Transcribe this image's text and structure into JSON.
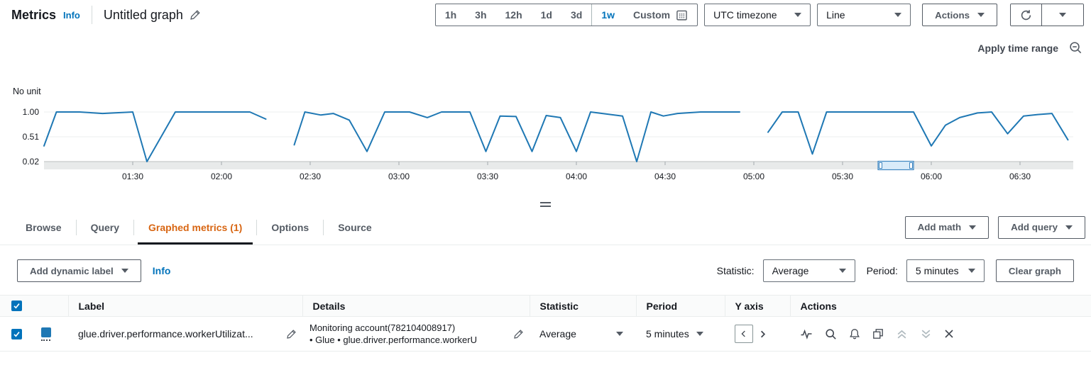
{
  "header": {
    "app_title": "Metrics",
    "info_label": "Info",
    "graph_title": "Untitled graph",
    "time_ranges": [
      "1h",
      "3h",
      "12h",
      "1d",
      "3d",
      "1w",
      "Custom"
    ],
    "selected_time_range": "1w",
    "timezone_value": "UTC timezone",
    "chart_type_value": "Line",
    "actions_label": "Actions"
  },
  "chart_panel": {
    "apply_time_range_label": "Apply time range"
  },
  "chart_data": {
    "type": "line",
    "unit_label": "No unit",
    "line_color": "#1f78b4",
    "xlim_hours": [
      1.0,
      6.8
    ],
    "y_ticks": [
      {
        "v": 1.0,
        "label": "1.00"
      },
      {
        "v": 0.51,
        "label": "0.51"
      },
      {
        "v": 0.02,
        "label": "0.02"
      }
    ],
    "x_ticks": [
      {
        "t": 1.5,
        "label": "01:30"
      },
      {
        "t": 2.0,
        "label": "02:00"
      },
      {
        "t": 2.5,
        "label": "02:30"
      },
      {
        "t": 3.0,
        "label": "03:00"
      },
      {
        "t": 3.5,
        "label": "03:30"
      },
      {
        "t": 4.0,
        "label": "04:00"
      },
      {
        "t": 4.5,
        "label": "04:30"
      },
      {
        "t": 5.0,
        "label": "05:00"
      },
      {
        "t": 5.5,
        "label": "05:30"
      },
      {
        "t": 6.0,
        "label": "06:00"
      },
      {
        "t": 6.5,
        "label": "06:30"
      }
    ],
    "series": [
      {
        "name": "glue.driver.performance.workerUtilizat...",
        "color": "#1f78b4",
        "segments": [
          [
            [
              1.0,
              0.33
            ],
            [
              1.07,
              1.0
            ],
            [
              1.2,
              1.0
            ],
            [
              1.33,
              0.97
            ],
            [
              1.5,
              1.0
            ],
            [
              1.58,
              0.02
            ],
            [
              1.74,
              1.0
            ],
            [
              2.16,
              1.0
            ],
            [
              2.25,
              0.86
            ]
          ],
          [
            [
              2.41,
              0.35
            ],
            [
              2.47,
              1.0
            ],
            [
              2.56,
              0.94
            ],
            [
              2.63,
              0.97
            ],
            [
              2.72,
              0.84
            ],
            [
              2.82,
              0.22
            ],
            [
              2.92,
              1.0
            ],
            [
              3.06,
              1.0
            ],
            [
              3.16,
              0.89
            ],
            [
              3.24,
              1.0
            ],
            [
              3.4,
              1.0
            ],
            [
              3.49,
              0.22
            ],
            [
              3.57,
              0.92
            ],
            [
              3.66,
              0.91
            ],
            [
              3.75,
              0.22
            ],
            [
              3.83,
              0.93
            ],
            [
              3.91,
              0.89
            ],
            [
              4.0,
              0.22
            ],
            [
              4.08,
              1.0
            ],
            [
              4.26,
              0.92
            ],
            [
              4.34,
              0.02
            ],
            [
              4.42,
              1.0
            ],
            [
              4.49,
              0.92
            ],
            [
              4.57,
              0.97
            ],
            [
              4.7,
              1.0
            ],
            [
              4.92,
              1.0
            ]
          ],
          [
            [
              5.08,
              0.6
            ],
            [
              5.16,
              1.0
            ],
            [
              5.25,
              1.0
            ],
            [
              5.33,
              0.17
            ],
            [
              5.41,
              1.0
            ],
            [
              5.9,
              1.0
            ],
            [
              6.0,
              0.33
            ],
            [
              6.08,
              0.74
            ],
            [
              6.16,
              0.89
            ],
            [
              6.26,
              0.98
            ],
            [
              6.34,
              1.0
            ],
            [
              6.43,
              0.57
            ],
            [
              6.52,
              0.92
            ],
            [
              6.6,
              0.95
            ],
            [
              6.68,
              0.97
            ],
            [
              6.77,
              0.45
            ]
          ]
        ]
      }
    ],
    "brush_window_hours": [
      5.7,
      5.9
    ]
  },
  "tabs": {
    "items": [
      {
        "label": "Browse",
        "active": false
      },
      {
        "label": "Query",
        "active": false
      },
      {
        "label": "Graphed metrics (1)",
        "active": true
      },
      {
        "label": "Options",
        "active": false
      },
      {
        "label": "Source",
        "active": false
      }
    ]
  },
  "graph_actions": {
    "add_math": "Add math",
    "add_query": "Add query"
  },
  "toolbar": {
    "add_dynamic_label": "Add dynamic label",
    "info_label": "Info",
    "statistic_label": "Statistic:",
    "statistic_value": "Average",
    "period_label": "Period:",
    "period_value": "5 minutes",
    "clear_graph": "Clear graph"
  },
  "table": {
    "select_all_checked": true,
    "columns": {
      "label": "Label",
      "details": "Details",
      "statistic": "Statistic",
      "period": "Period",
      "y_axis": "Y axis",
      "actions": "Actions"
    },
    "rows": [
      {
        "checked": true,
        "color": "#1f78b4",
        "label": "glue.driver.performance.workerUtilizat...",
        "details_line1": "Monitoring account(782104008917)",
        "details_line2": "• Glue • glue.driver.performance.workerU",
        "statistic": "Average",
        "period": "5 minutes",
        "row_action_icons": [
          "pulse",
          "zoom-in-metric",
          "alarm-bell",
          "duplicate",
          "move-up",
          "move-down",
          "remove"
        ]
      }
    ]
  }
}
